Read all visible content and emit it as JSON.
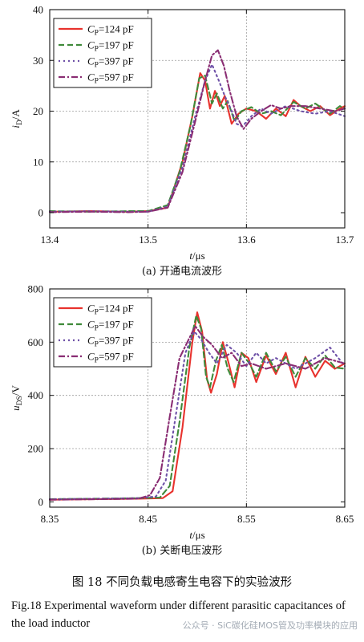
{
  "colors": [
    "#e8322d",
    "#3f8a3a",
    "#6f52a8",
    "#8a2d73"
  ],
  "dashes": [
    "",
    "7,4",
    "2,4",
    "8,3,2,3"
  ],
  "chart_data": [
    {
      "type": "line",
      "caption": "(a) 开通电流波形",
      "xlim": [
        13.4,
        13.7
      ],
      "ylim": [
        -3,
        40
      ],
      "xticks": [
        13.4,
        13.5,
        13.6,
        13.7
      ],
      "yticks": [
        0,
        10,
        20,
        30,
        40
      ],
      "xtick_labels": [
        "13.4",
        "13.5",
        "13.6",
        "13.7"
      ],
      "ytick_labels": [
        "0",
        "10",
        "20",
        "30",
        "40"
      ],
      "xlabel": {
        "var": "t",
        "unit": "/μs"
      },
      "ylabel": {
        "var": "i",
        "sub": "D",
        "unit": "/A"
      },
      "series": [
        {
          "name": "C_P=124 pF",
          "legend_var": "C",
          "legend_sub": "P",
          "legend_rest": "=124 pF",
          "points": [
            [
              13.4,
              0.2
            ],
            [
              13.44,
              0.3
            ],
            [
              13.48,
              0.2
            ],
            [
              13.5,
              0.3
            ],
            [
              13.52,
              1
            ],
            [
              13.535,
              10
            ],
            [
              13.545,
              19
            ],
            [
              13.553,
              27.5
            ],
            [
              13.558,
              26
            ],
            [
              13.563,
              20.5
            ],
            [
              13.568,
              24
            ],
            [
              13.573,
              21
            ],
            [
              13.578,
              23
            ],
            [
              13.585,
              17.5
            ],
            [
              13.592,
              19.5
            ],
            [
              13.6,
              20.5
            ],
            [
              13.61,
              20
            ],
            [
              13.62,
              18.5
            ],
            [
              13.63,
              20.5
            ],
            [
              13.64,
              19
            ],
            [
              13.648,
              22.2
            ],
            [
              13.655,
              21
            ],
            [
              13.665,
              20
            ],
            [
              13.675,
              21
            ],
            [
              13.685,
              19.2
            ],
            [
              13.695,
              20.5
            ],
            [
              13.7,
              21
            ]
          ]
        },
        {
          "name": "C_P=197 pF",
          "legend_var": "C",
          "legend_sub": "P",
          "legend_rest": "=197 pF",
          "points": [
            [
              13.4,
              0.3
            ],
            [
              13.44,
              0.2
            ],
            [
              13.48,
              0.3
            ],
            [
              13.5,
              0.3
            ],
            [
              13.52,
              1.5
            ],
            [
              13.532,
              8
            ],
            [
              13.543,
              17
            ],
            [
              13.552,
              26.5
            ],
            [
              13.558,
              27
            ],
            [
              13.565,
              21.5
            ],
            [
              13.57,
              23.5
            ],
            [
              13.576,
              20.5
            ],
            [
              13.581,
              22
            ],
            [
              13.588,
              18
            ],
            [
              13.595,
              20
            ],
            [
              13.605,
              20.8
            ],
            [
              13.615,
              19.5
            ],
            [
              13.625,
              20
            ],
            [
              13.635,
              19.2
            ],
            [
              13.648,
              21.8
            ],
            [
              13.66,
              20.5
            ],
            [
              13.67,
              21.5
            ],
            [
              13.685,
              19.5
            ],
            [
              13.695,
              21
            ],
            [
              13.7,
              20.5
            ]
          ]
        },
        {
          "name": "C_P=397 pF",
          "legend_var": "C",
          "legend_sub": "P",
          "legend_rest": "=397 pF",
          "points": [
            [
              13.4,
              0.2
            ],
            [
              13.44,
              0.3
            ],
            [
              13.48,
              0.2
            ],
            [
              13.5,
              0.2
            ],
            [
              13.52,
              1.2
            ],
            [
              13.535,
              9
            ],
            [
              13.548,
              19
            ],
            [
              13.558,
              26
            ],
            [
              13.565,
              29.2
            ],
            [
              13.572,
              26
            ],
            [
              13.578,
              23
            ],
            [
              13.584,
              20.5
            ],
            [
              13.59,
              17.5
            ],
            [
              13.596,
              17
            ],
            [
              13.605,
              19
            ],
            [
              13.615,
              20.5
            ],
            [
              13.625,
              19.5
            ],
            [
              13.64,
              21
            ],
            [
              13.655,
              20
            ],
            [
              13.67,
              19.5
            ],
            [
              13.685,
              20
            ],
            [
              13.7,
              19
            ]
          ]
        },
        {
          "name": "C_P=597 pF",
          "legend_var": "C",
          "legend_sub": "P",
          "legend_rest": "=597 pF",
          "points": [
            [
              13.4,
              0.1
            ],
            [
              13.44,
              0.2
            ],
            [
              13.48,
              0.1
            ],
            [
              13.5,
              0.2
            ],
            [
              13.52,
              1
            ],
            [
              13.535,
              8
            ],
            [
              13.548,
              18
            ],
            [
              13.558,
              26
            ],
            [
              13.565,
              31
            ],
            [
              13.571,
              32
            ],
            [
              13.577,
              29
            ],
            [
              13.583,
              24
            ],
            [
              13.59,
              19
            ],
            [
              13.597,
              16.5
            ],
            [
              13.605,
              18.5
            ],
            [
              13.615,
              20
            ],
            [
              13.625,
              21.2
            ],
            [
              13.635,
              20.5
            ],
            [
              13.645,
              21
            ],
            [
              13.66,
              21
            ],
            [
              13.675,
              20.5
            ],
            [
              13.69,
              20
            ],
            [
              13.7,
              20.5
            ]
          ]
        }
      ]
    },
    {
      "type": "line",
      "caption": "(b) 关断电压波形",
      "xlim": [
        8.35,
        8.65
      ],
      "ylim": [
        -20,
        800
      ],
      "xticks": [
        8.35,
        8.45,
        8.55,
        8.65
      ],
      "yticks": [
        0,
        200,
        400,
        600,
        800
      ],
      "xtick_labels": [
        "8.35",
        "8.45",
        "8.55",
        "8.65"
      ],
      "ytick_labels": [
        "0",
        "200",
        "400",
        "600",
        "800"
      ],
      "xlabel": {
        "var": "t",
        "unit": "/μs"
      },
      "ylabel": {
        "var": "u",
        "sub": "DS",
        "unit": "/V"
      },
      "series": [
        {
          "name": "C_P=124 pF",
          "legend_var": "C",
          "legend_sub": "P",
          "legend_rest": "=124 pF",
          "points": [
            [
              8.35,
              8
            ],
            [
              8.4,
              10
            ],
            [
              8.44,
              12
            ],
            [
              8.465,
              14
            ],
            [
              8.475,
              40
            ],
            [
              8.485,
              280
            ],
            [
              8.495,
              600
            ],
            [
              8.5,
              712
            ],
            [
              8.505,
              640
            ],
            [
              8.51,
              460
            ],
            [
              8.514,
              410
            ],
            [
              8.52,
              480
            ],
            [
              8.526,
              600
            ],
            [
              8.532,
              520
            ],
            [
              8.538,
              430
            ],
            [
              8.545,
              560
            ],
            [
              8.552,
              540
            ],
            [
              8.56,
              450
            ],
            [
              8.57,
              550
            ],
            [
              8.58,
              480
            ],
            [
              8.59,
              560
            ],
            [
              8.6,
              430
            ],
            [
              8.61,
              545
            ],
            [
              8.62,
              470
            ],
            [
              8.63,
              530
            ],
            [
              8.64,
              500
            ],
            [
              8.65,
              520
            ]
          ]
        },
        {
          "name": "C_P=197 pF",
          "legend_var": "C",
          "legend_sub": "P",
          "legend_rest": "=197 pF",
          "points": [
            [
              8.35,
              10
            ],
            [
              8.4,
              12
            ],
            [
              8.44,
              14
            ],
            [
              8.462,
              16
            ],
            [
              8.472,
              60
            ],
            [
              8.482,
              300
            ],
            [
              8.492,
              580
            ],
            [
              8.499,
              700
            ],
            [
              8.504,
              650
            ],
            [
              8.509,
              470
            ],
            [
              8.513,
              430
            ],
            [
              8.519,
              530
            ],
            [
              8.525,
              590
            ],
            [
              8.531,
              500
            ],
            [
              8.537,
              450
            ],
            [
              8.545,
              560
            ],
            [
              8.553,
              520
            ],
            [
              8.56,
              470
            ],
            [
              8.57,
              560
            ],
            [
              8.58,
              490
            ],
            [
              8.59,
              545
            ],
            [
              8.6,
              470
            ],
            [
              8.61,
              540
            ],
            [
              8.62,
              500
            ],
            [
              8.63,
              550
            ],
            [
              8.64,
              505
            ],
            [
              8.65,
              500
            ]
          ]
        },
        {
          "name": "C_P=397 pF",
          "legend_var": "C",
          "legend_sub": "P",
          "legend_rest": "=397 pF",
          "points": [
            [
              8.35,
              10
            ],
            [
              8.4,
              12
            ],
            [
              8.44,
              14
            ],
            [
              8.458,
              20
            ],
            [
              8.468,
              80
            ],
            [
              8.478,
              320
            ],
            [
              8.488,
              560
            ],
            [
              8.497,
              640
            ],
            [
              8.504,
              610
            ],
            [
              8.512,
              560
            ],
            [
              8.52,
              520
            ],
            [
              8.53,
              590
            ],
            [
              8.54,
              560
            ],
            [
              8.55,
              510
            ],
            [
              8.56,
              560
            ],
            [
              8.57,
              520
            ],
            [
              8.58,
              540
            ],
            [
              8.6,
              500
            ],
            [
              8.62,
              540
            ],
            [
              8.635,
              580
            ],
            [
              8.65,
              510
            ]
          ]
        },
        {
          "name": "C_P=597 pF",
          "legend_var": "C",
          "legend_sub": "P",
          "legend_rest": "=597 pF",
          "points": [
            [
              8.35,
              8
            ],
            [
              8.4,
              10
            ],
            [
              8.44,
              12
            ],
            [
              8.452,
              25
            ],
            [
              8.462,
              90
            ],
            [
              8.472,
              320
            ],
            [
              8.482,
              540
            ],
            [
              8.49,
              600
            ],
            [
              8.498,
              660
            ],
            [
              8.506,
              620
            ],
            [
              8.515,
              590
            ],
            [
              8.525,
              540
            ],
            [
              8.535,
              560
            ],
            [
              8.545,
              510
            ],
            [
              8.555,
              520
            ],
            [
              8.57,
              500
            ],
            [
              8.59,
              520
            ],
            [
              8.61,
              500
            ],
            [
              8.63,
              540
            ],
            [
              8.65,
              520
            ]
          ]
        }
      ]
    }
  ],
  "caption_cn": "图 18    不同负载电感寄生电容下的实验波形",
  "caption_en": "Fig.18    Experimental waveform under different parasitic capacitances of the load inductor",
  "watermark": "公众号 · SiC碳化硅MOS管及功率模块的应用"
}
